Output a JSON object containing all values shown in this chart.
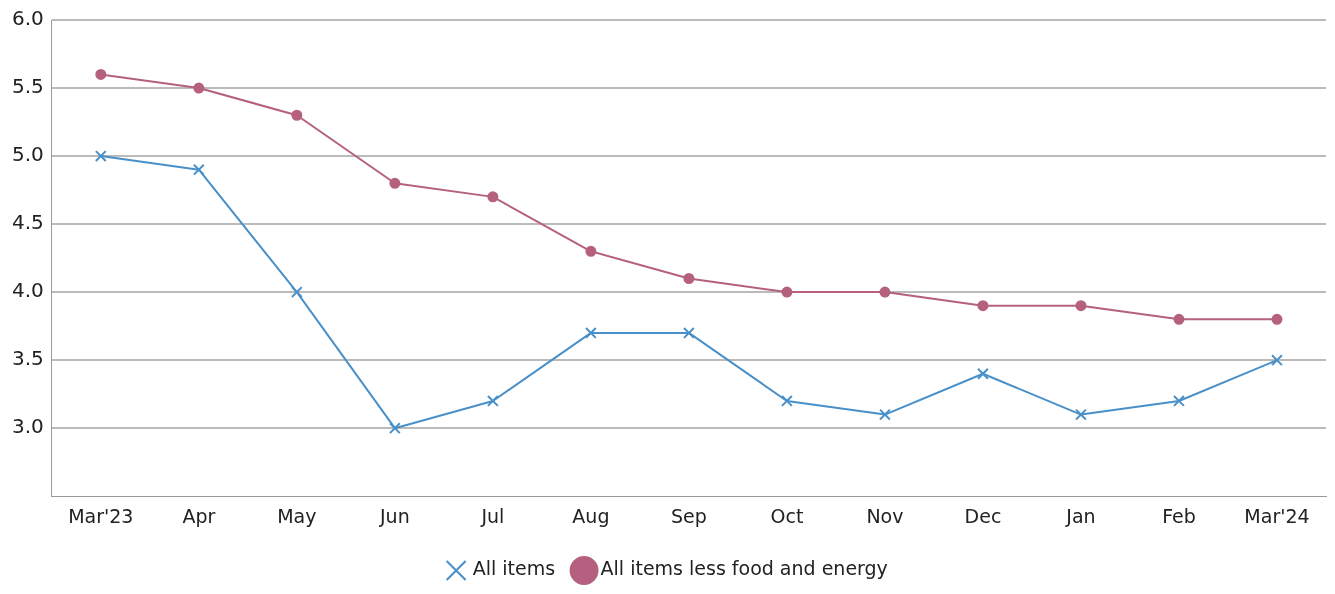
{
  "chart_data": {
    "type": "line",
    "categories": [
      "Mar'23",
      "Apr",
      "May",
      "Jun",
      "Jul",
      "Aug",
      "Sep",
      "Oct",
      "Nov",
      "Dec",
      "Jan",
      "Feb",
      "Mar'24"
    ],
    "series": [
      {
        "name": "All items",
        "color": "#4a90c8",
        "marker": "cross",
        "values": [
          5.0,
          4.9,
          4.0,
          3.0,
          3.2,
          3.7,
          3.7,
          3.2,
          3.1,
          3.4,
          3.1,
          3.2,
          3.5
        ]
      },
      {
        "name": "All items less food and energy",
        "color": "#b5607e",
        "marker": "circle",
        "values": [
          5.6,
          5.5,
          5.3,
          4.8,
          4.7,
          4.3,
          4.1,
          4.0,
          4.0,
          3.9,
          3.9,
          3.8,
          3.8
        ]
      }
    ],
    "ylim": [
      2.5,
      6.0
    ],
    "yticks": [
      {
        "value": 3.0,
        "label": "3.0"
      },
      {
        "value": 3.5,
        "label": "3.5"
      },
      {
        "value": 4.0,
        "label": "4.0"
      },
      {
        "value": 4.5,
        "label": "4.5"
      },
      {
        "value": 5.0,
        "label": "5.0"
      },
      {
        "value": 5.5,
        "label": "5.5"
      },
      {
        "value": 6.0,
        "label": "6.0"
      }
    ],
    "grid": "y",
    "legend": "bottom",
    "line_style": "solid"
  }
}
